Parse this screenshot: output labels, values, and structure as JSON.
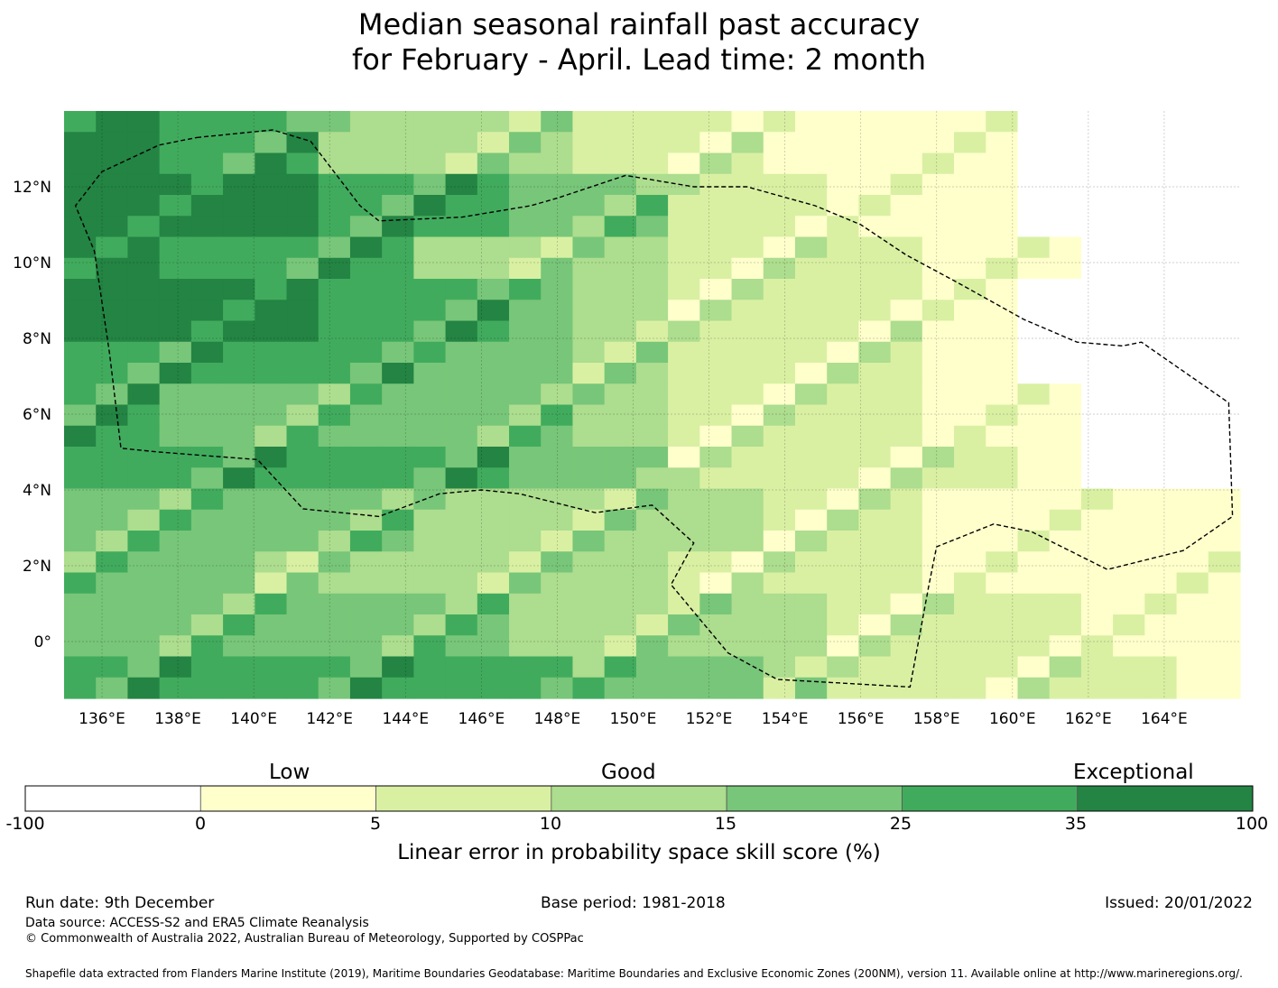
{
  "title": {
    "line1": "Median seasonal rainfall past accuracy",
    "line2": "for February - April. Lead time: 2 month"
  },
  "map": {
    "lon_range": [
      135,
      166
    ],
    "lat_range": [
      -1.5,
      14
    ],
    "x_ticks": [
      {
        "lon": 136,
        "label": "136°E"
      },
      {
        "lon": 138,
        "label": "138°E"
      },
      {
        "lon": 140,
        "label": "140°E"
      },
      {
        "lon": 142,
        "label": "142°E"
      },
      {
        "lon": 144,
        "label": "144°E"
      },
      {
        "lon": 146,
        "label": "146°E"
      },
      {
        "lon": 148,
        "label": "148°E"
      },
      {
        "lon": 150,
        "label": "150°E"
      },
      {
        "lon": 152,
        "label": "152°E"
      },
      {
        "lon": 154,
        "label": "154°E"
      },
      {
        "lon": 156,
        "label": "156°E"
      },
      {
        "lon": 158,
        "label": "158°E"
      },
      {
        "lon": 160,
        "label": "160°E"
      },
      {
        "lon": 162,
        "label": "162°E"
      },
      {
        "lon": 164,
        "label": "164°E"
      }
    ],
    "y_ticks": [
      {
        "lat": 12,
        "label": "12°N"
      },
      {
        "lat": 10,
        "label": "10°N"
      },
      {
        "lat": 8,
        "label": "8°N"
      },
      {
        "lat": 6,
        "label": "6°N"
      },
      {
        "lat": 4,
        "label": "4°N"
      },
      {
        "lat": 2,
        "label": "2°N"
      },
      {
        "lat": 0,
        "label": "0°"
      }
    ],
    "grid_cell_degrees": 0.833,
    "grid_rows_north_to_south": [
      "65533322111000",
      "66655442211000",
      "65553332221100",
      "66655432221000",
      "55554432221000",
      "54444432221100",
      "55555442222100",
      "44443333221111",
      "44333332221111",
      "44444333322211",
      "55555544322221"
    ],
    "boundary_lonlat": [
      [
        138.5,
        13.3
      ],
      [
        140.5,
        13.5
      ],
      [
        141.5,
        13.2
      ],
      [
        142.8,
        11.5
      ],
      [
        143.3,
        11.1
      ],
      [
        145.5,
        11.2
      ],
      [
        147.3,
        11.5
      ],
      [
        148.0,
        11.7
      ],
      [
        149.8,
        12.3
      ],
      [
        151.6,
        12.0
      ],
      [
        153.0,
        12.0
      ],
      [
        154.8,
        11.5
      ],
      [
        156.0,
        11.0
      ],
      [
        157.2,
        10.2
      ],
      [
        158.5,
        9.5
      ],
      [
        160.3,
        8.5
      ],
      [
        161.7,
        7.9
      ],
      [
        162.9,
        7.8
      ],
      [
        163.4,
        7.9
      ],
      [
        165.7,
        6.3
      ],
      [
        165.8,
        3.3
      ],
      [
        164.5,
        2.4
      ],
      [
        162.5,
        1.9
      ],
      [
        160.5,
        2.9
      ],
      [
        159.5,
        3.1
      ],
      [
        158.0,
        2.5
      ],
      [
        157.8,
        1.5
      ],
      [
        157.3,
        -1.2
      ],
      [
        153.8,
        -1.0
      ],
      [
        152.5,
        -0.3
      ],
      [
        151.0,
        1.5
      ],
      [
        151.6,
        2.6
      ],
      [
        150.5,
        3.6
      ],
      [
        149.0,
        3.4
      ],
      [
        147.0,
        3.9
      ],
      [
        146.0,
        4.0
      ],
      [
        144.9,
        3.9
      ],
      [
        143.3,
        3.3
      ],
      [
        141.3,
        3.5
      ],
      [
        140.1,
        4.8
      ],
      [
        137.5,
        5.0
      ],
      [
        136.5,
        5.1
      ],
      [
        136.2,
        7.6
      ],
      [
        135.8,
        10.3
      ],
      [
        135.3,
        11.5
      ],
      [
        136.0,
        12.4
      ],
      [
        137.5,
        13.1
      ]
    ]
  },
  "colorbar": {
    "category_labels": {
      "low": "Low",
      "good": "Good",
      "exceptional": "Exceptional"
    },
    "ticks": [
      "-100",
      "0",
      "5",
      "10",
      "15",
      "25",
      "35",
      "100"
    ],
    "colors": [
      "#ffffff",
      "#ffffcc",
      "#d9f0a3",
      "#addd8e",
      "#78c679",
      "#41ab5d",
      "#238443"
    ],
    "title": "Linear error in probability space skill score (%)"
  },
  "footer": {
    "run_date": "Run date: 9th December",
    "base_period": "Base period: 1981-2018",
    "issued": "Issued: 20/01/2022",
    "data_source": "Data source: ACCESS-S2 and ERA5 Climate Reanalysis",
    "copyright": "© Commonwealth of Australia 2022, Australian Bureau of Meteorology, Supported by COSPPac",
    "shapefile_note": "Shapefile data extracted from Flanders Marine Institute (2019), Maritime Boundaries Geodatabase: Maritime Boundaries and Exclusive Economic Zones (200NM), version 11. Available online at http://www.marineregions.org/."
  }
}
